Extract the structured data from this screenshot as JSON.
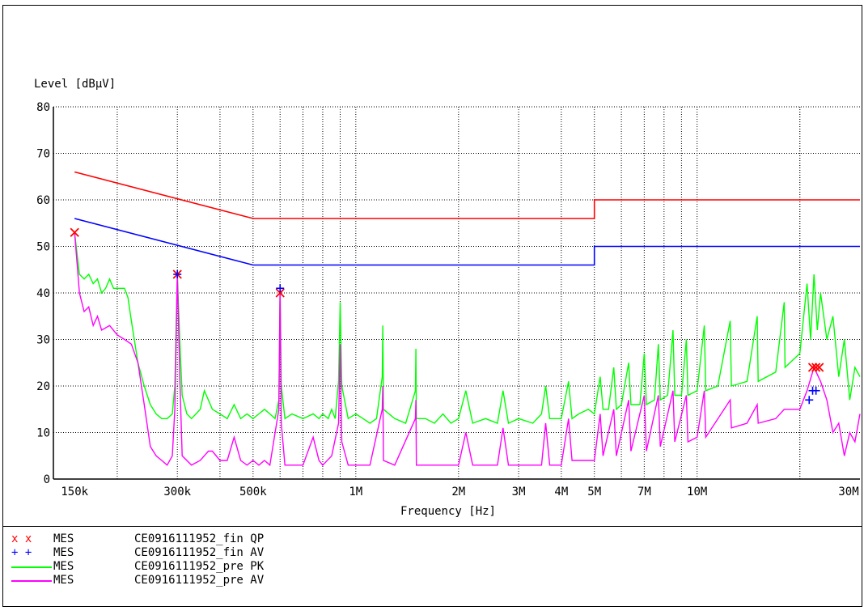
{
  "chart_data": {
    "type": "line",
    "ylabel": "Level [dBµV]",
    "xlabel": "Frequency [Hz]",
    "x_scale": "log",
    "xlim": [
      130000,
      30000000
    ],
    "ylim": [
      0,
      80
    ],
    "grid": true,
    "x_ticks": [
      {
        "label": "150k",
        "value": 150000
      },
      {
        "label": "300k",
        "value": 300000
      },
      {
        "label": "500k",
        "value": 500000
      },
      {
        "label": "1M",
        "value": 1000000
      },
      {
        "label": "2M",
        "value": 2000000
      },
      {
        "label": "3M",
        "value": 3000000
      },
      {
        "label": "4M",
        "value": 4000000
      },
      {
        "label": "5M",
        "value": 5000000
      },
      {
        "label": "7M",
        "value": 7000000
      },
      {
        "label": "10M",
        "value": 10000000
      },
      {
        "label": "30M",
        "value": 30000000
      }
    ],
    "y_ticks": [
      {
        "label": "0",
        "value": 0
      },
      {
        "label": "10",
        "value": 10
      },
      {
        "label": "20",
        "value": 20
      },
      {
        "label": "30",
        "value": 30
      },
      {
        "label": "40",
        "value": 40
      },
      {
        "label": "50",
        "value": 50
      },
      {
        "label": "60",
        "value": 60
      },
      {
        "label": "70",
        "value": 70
      },
      {
        "label": "80",
        "value": 80
      }
    ],
    "limit_lines": [
      {
        "color": "#ff0000",
        "points": [
          [
            150000,
            66
          ],
          [
            500000,
            56
          ],
          [
            5000000,
            56
          ],
          [
            5000000,
            60
          ],
          [
            30000000,
            60
          ]
        ]
      },
      {
        "color": "#0000ff",
        "points": [
          [
            150000,
            56
          ],
          [
            500000,
            46
          ],
          [
            5000000,
            46
          ],
          [
            5000000,
            50
          ],
          [
            30000000,
            50
          ]
        ]
      }
    ],
    "series": [
      {
        "name": "MES CE0916111952_pre PK",
        "color": "#00ff00",
        "points": [
          [
            150000,
            53
          ],
          [
            155000,
            44
          ],
          [
            160000,
            43
          ],
          [
            165000,
            44
          ],
          [
            170000,
            42
          ],
          [
            175000,
            43
          ],
          [
            180000,
            40
          ],
          [
            185000,
            41
          ],
          [
            190000,
            43
          ],
          [
            195000,
            41
          ],
          [
            200000,
            41
          ],
          [
            210000,
            41
          ],
          [
            215000,
            39
          ],
          [
            220000,
            34
          ],
          [
            230000,
            25
          ],
          [
            240000,
            20
          ],
          [
            250000,
            16
          ],
          [
            260000,
            14
          ],
          [
            270000,
            13
          ],
          [
            280000,
            13
          ],
          [
            290000,
            14
          ],
          [
            295000,
            20
          ],
          [
            300000,
            44
          ],
          [
            305000,
            30
          ],
          [
            310000,
            18
          ],
          [
            320000,
            14
          ],
          [
            330000,
            13
          ],
          [
            340000,
            14
          ],
          [
            350000,
            15
          ],
          [
            360000,
            19
          ],
          [
            370000,
            17
          ],
          [
            380000,
            15
          ],
          [
            400000,
            14
          ],
          [
            420000,
            13
          ],
          [
            440000,
            16
          ],
          [
            460000,
            13
          ],
          [
            480000,
            14
          ],
          [
            500000,
            13
          ],
          [
            520000,
            14
          ],
          [
            540000,
            15
          ],
          [
            560000,
            14
          ],
          [
            580000,
            13
          ],
          [
            595000,
            17
          ],
          [
            600000,
            41
          ],
          [
            605000,
            20
          ],
          [
            620000,
            13
          ],
          [
            650000,
            14
          ],
          [
            700000,
            13
          ],
          [
            750000,
            14
          ],
          [
            780000,
            13
          ],
          [
            800000,
            14
          ],
          [
            830000,
            13
          ],
          [
            850000,
            15
          ],
          [
            870000,
            13
          ],
          [
            890000,
            21
          ],
          [
            900000,
            38
          ],
          [
            910000,
            20
          ],
          [
            950000,
            13
          ],
          [
            1000000,
            14
          ],
          [
            1050000,
            13
          ],
          [
            1100000,
            12
          ],
          [
            1150000,
            13
          ],
          [
            1195000,
            22
          ],
          [
            1200000,
            33
          ],
          [
            1205000,
            15
          ],
          [
            1300000,
            13
          ],
          [
            1400000,
            12
          ],
          [
            1495000,
            19
          ],
          [
            1500000,
            28
          ],
          [
            1505000,
            13
          ],
          [
            1600000,
            13
          ],
          [
            1700000,
            12
          ],
          [
            1800000,
            14
          ],
          [
            1900000,
            12
          ],
          [
            2000000,
            13
          ],
          [
            2100000,
            19
          ],
          [
            2200000,
            12
          ],
          [
            2400000,
            13
          ],
          [
            2600000,
            12
          ],
          [
            2700000,
            19
          ],
          [
            2800000,
            12
          ],
          [
            3000000,
            13
          ],
          [
            3300000,
            12
          ],
          [
            3500000,
            14
          ],
          [
            3600000,
            20
          ],
          [
            3700000,
            13
          ],
          [
            4000000,
            13
          ],
          [
            4200000,
            21
          ],
          [
            4300000,
            13
          ],
          [
            4500000,
            14
          ],
          [
            4800000,
            15
          ],
          [
            5000000,
            14
          ],
          [
            5200000,
            22
          ],
          [
            5300000,
            15
          ],
          [
            5500000,
            15
          ],
          [
            5700000,
            24
          ],
          [
            5800000,
            15
          ],
          [
            6000000,
            16
          ],
          [
            6300000,
            25
          ],
          [
            6400000,
            16
          ],
          [
            6800000,
            16
          ],
          [
            7000000,
            27
          ],
          [
            7100000,
            16
          ],
          [
            7500000,
            17
          ],
          [
            7700000,
            29
          ],
          [
            7800000,
            17
          ],
          [
            8200000,
            18
          ],
          [
            8500000,
            32
          ],
          [
            8600000,
            18
          ],
          [
            9000000,
            18
          ],
          [
            9300000,
            30
          ],
          [
            9400000,
            18
          ],
          [
            10000000,
            19
          ],
          [
            10500000,
            33
          ],
          [
            10600000,
            19
          ],
          [
            11500000,
            20
          ],
          [
            12500000,
            34
          ],
          [
            12600000,
            20
          ],
          [
            14000000,
            21
          ],
          [
            15000000,
            35
          ],
          [
            15100000,
            21
          ],
          [
            17000000,
            23
          ],
          [
            18000000,
            38
          ],
          [
            18100000,
            24
          ],
          [
            20000000,
            27
          ],
          [
            21000000,
            42
          ],
          [
            21500000,
            30
          ],
          [
            22000000,
            44
          ],
          [
            22500000,
            32
          ],
          [
            23000000,
            40
          ],
          [
            24000000,
            30
          ],
          [
            25000000,
            35
          ],
          [
            26000000,
            22
          ],
          [
            27000000,
            30
          ],
          [
            28000000,
            17
          ],
          [
            29000000,
            24
          ],
          [
            30000000,
            22
          ]
        ]
      },
      {
        "name": "MES CE0916111952_pre AV",
        "color": "#ff00ff",
        "points": [
          [
            150000,
            53
          ],
          [
            155000,
            40
          ],
          [
            160000,
            36
          ],
          [
            165000,
            37
          ],
          [
            170000,
            33
          ],
          [
            175000,
            35
          ],
          [
            180000,
            32
          ],
          [
            190000,
            33
          ],
          [
            200000,
            31
          ],
          [
            210000,
            30
          ],
          [
            220000,
            29
          ],
          [
            230000,
            25
          ],
          [
            240000,
            16
          ],
          [
            250000,
            7
          ],
          [
            260000,
            5
          ],
          [
            270000,
            4
          ],
          [
            280000,
            3
          ],
          [
            290000,
            5
          ],
          [
            295000,
            15
          ],
          [
            300000,
            44
          ],
          [
            305000,
            22
          ],
          [
            310000,
            5
          ],
          [
            330000,
            3
          ],
          [
            350000,
            4
          ],
          [
            370000,
            6
          ],
          [
            380000,
            6
          ],
          [
            400000,
            4
          ],
          [
            420000,
            4
          ],
          [
            440000,
            9
          ],
          [
            460000,
            4
          ],
          [
            480000,
            3
          ],
          [
            500000,
            4
          ],
          [
            520000,
            3
          ],
          [
            540000,
            4
          ],
          [
            560000,
            3
          ],
          [
            595000,
            15
          ],
          [
            600000,
            41
          ],
          [
            605000,
            12
          ],
          [
            620000,
            3
          ],
          [
            650000,
            3
          ],
          [
            700000,
            3
          ],
          [
            750000,
            9
          ],
          [
            780000,
            4
          ],
          [
            800000,
            3
          ],
          [
            850000,
            5
          ],
          [
            890000,
            12
          ],
          [
            900000,
            29
          ],
          [
            910000,
            8
          ],
          [
            950000,
            3
          ],
          [
            1000000,
            3
          ],
          [
            1100000,
            3
          ],
          [
            1195000,
            15
          ],
          [
            1200000,
            20
          ],
          [
            1205000,
            4
          ],
          [
            1300000,
            3
          ],
          [
            1495000,
            13
          ],
          [
            1500000,
            17
          ],
          [
            1505000,
            3
          ],
          [
            1700000,
            3
          ],
          [
            2000000,
            3
          ],
          [
            2100000,
            10
          ],
          [
            2200000,
            3
          ],
          [
            2600000,
            3
          ],
          [
            2700000,
            11
          ],
          [
            2800000,
            3
          ],
          [
            3000000,
            3
          ],
          [
            3500000,
            3
          ],
          [
            3600000,
            12
          ],
          [
            3700000,
            3
          ],
          [
            4000000,
            3
          ],
          [
            4200000,
            13
          ],
          [
            4300000,
            4
          ],
          [
            5000000,
            4
          ],
          [
            5200000,
            14
          ],
          [
            5300000,
            5
          ],
          [
            5700000,
            15
          ],
          [
            5800000,
            5
          ],
          [
            6300000,
            17
          ],
          [
            6400000,
            6
          ],
          [
            7000000,
            18
          ],
          [
            7100000,
            6
          ],
          [
            7700000,
            18
          ],
          [
            7800000,
            7
          ],
          [
            8500000,
            19
          ],
          [
            8600000,
            8
          ],
          [
            9300000,
            18
          ],
          [
            9400000,
            8
          ],
          [
            10000000,
            9
          ],
          [
            10500000,
            19
          ],
          [
            10600000,
            9
          ],
          [
            12500000,
            17
          ],
          [
            12600000,
            11
          ],
          [
            14000000,
            12
          ],
          [
            15000000,
            16
          ],
          [
            15100000,
            12
          ],
          [
            17000000,
            13
          ],
          [
            18000000,
            15
          ],
          [
            20000000,
            15
          ],
          [
            21000000,
            19
          ],
          [
            22000000,
            24
          ],
          [
            23000000,
            21
          ],
          [
            24000000,
            17
          ],
          [
            25000000,
            10
          ],
          [
            26000000,
            12
          ],
          [
            27000000,
            5
          ],
          [
            28000000,
            10
          ],
          [
            29000000,
            8
          ],
          [
            30000000,
            14
          ]
        ]
      },
      {
        "name": "MES CE0916111952_fin QP",
        "color": "#ff0000",
        "marker": "x",
        "points": [
          [
            150000,
            53
          ],
          [
            300000,
            44
          ],
          [
            600000,
            40
          ],
          [
            21800000,
            24
          ],
          [
            22300000,
            24
          ],
          [
            22800000,
            24
          ]
        ]
      },
      {
        "name": "MES CE0916111952_fin AV",
        "color": "#0000ff",
        "marker": "+",
        "points": [
          [
            300000,
            44
          ],
          [
            600000,
            41
          ],
          [
            21300000,
            17
          ],
          [
            21800000,
            19
          ],
          [
            22300000,
            19
          ]
        ]
      }
    ]
  },
  "legend": [
    {
      "symbol": "x x",
      "label": "MES",
      "file": "CE0916111952_fin QP",
      "color": "#ff0000",
      "style": "marker-x"
    },
    {
      "symbol": "+ +",
      "label": "MES",
      "file": "CE0916111952_fin AV",
      "color": "#0000ff",
      "style": "marker-plus"
    },
    {
      "symbol": "",
      "label": "MES",
      "file": "CE0916111952_pre PK",
      "color": "#00ff00",
      "style": "line"
    },
    {
      "symbol": "",
      "label": "MES",
      "file": "CE0916111952_pre AV",
      "color": "#ff00ff",
      "style": "line"
    }
  ]
}
